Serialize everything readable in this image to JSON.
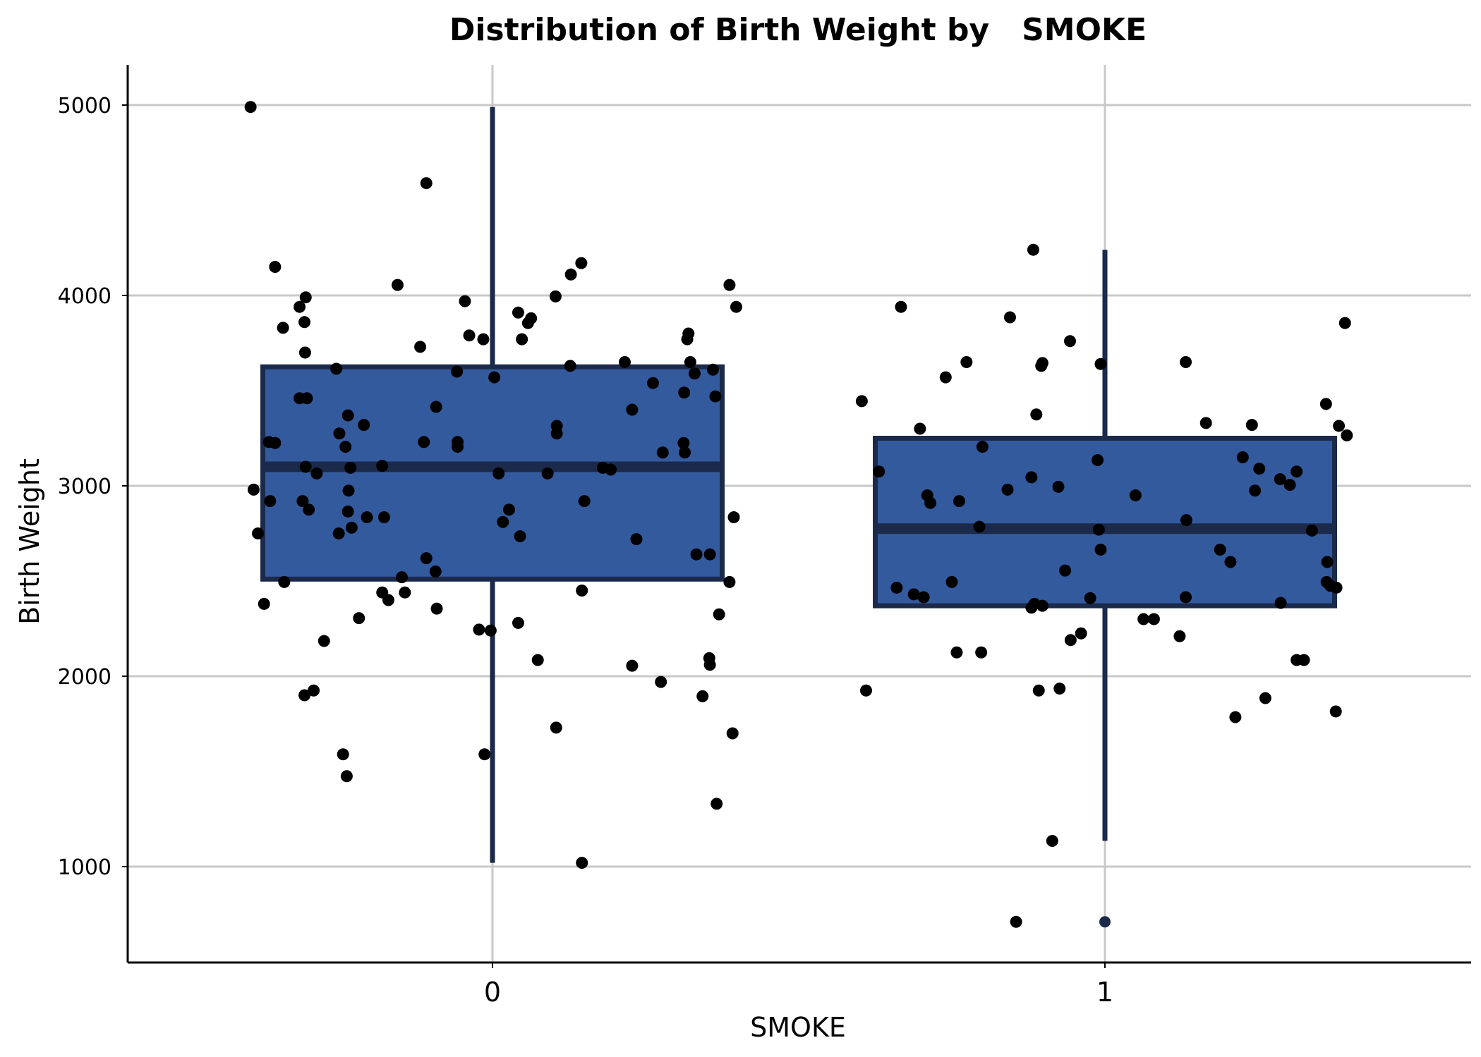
{
  "chart_data": {
    "type": "boxplot",
    "title": "Distribution of Birth Weight by   SMOKE",
    "xlabel": "SMOKE",
    "ylabel": "Birth Weight",
    "categories": [
      "0",
      "1"
    ],
    "ylim": [
      500,
      5200
    ],
    "yticks": [
      1000,
      2000,
      3000,
      4000,
      5000
    ],
    "grid": true,
    "colors": {
      "box_fill": "#345A9E",
      "box_stroke": "#1B2A4A",
      "point": "#000000",
      "outlier_point": "#1B2A4A",
      "grid": "#C8C8C8",
      "axis": "#000000"
    },
    "boxes": [
      {
        "category": "0",
        "q1": 2510,
        "median": 3100,
        "q3": 3625,
        "whisker_low": 1020,
        "whisker_high": 4990,
        "outliers": []
      },
      {
        "category": "1",
        "q1": 2370,
        "median": 2775,
        "q3": 3250,
        "whisker_low": 1135,
        "whisker_high": 4240,
        "outliers": [
          710
        ]
      }
    ],
    "points": [
      {
        "x": -0.395,
        "y": 4990
      },
      {
        "x": -0.108,
        "y": 4590
      },
      {
        "x": -0.355,
        "y": 4150
      },
      {
        "x": -0.305,
        "y": 3990
      },
      {
        "x": -0.315,
        "y": 3940
      },
      {
        "x": -0.307,
        "y": 3860
      },
      {
        "x": -0.342,
        "y": 3830
      },
      {
        "x": -0.155,
        "y": 4055
      },
      {
        "x": 0.145,
        "y": 4170
      },
      {
        "x": 0.128,
        "y": 4110
      },
      {
        "x": 0.103,
        "y": 3995
      },
      {
        "x": -0.045,
        "y": 3970
      },
      {
        "x": 0.042,
        "y": 3910
      },
      {
        "x": 0.063,
        "y": 3880
      },
      {
        "x": 0.058,
        "y": 3855
      },
      {
        "x": 0.048,
        "y": 3770
      },
      {
        "x": -0.038,
        "y": 3790
      },
      {
        "x": -0.015,
        "y": 3770
      },
      {
        "x": -0.118,
        "y": 3730
      },
      {
        "x": -0.306,
        "y": 3700
      },
      {
        "x": -0.255,
        "y": 3615
      },
      {
        "x": -0.058,
        "y": 3600
      },
      {
        "x": 0.003,
        "y": 3570
      },
      {
        "x": 0.127,
        "y": 3630
      },
      {
        "x": 0.216,
        "y": 3650
      },
      {
        "x": 0.262,
        "y": 3540
      },
      {
        "x": 0.323,
        "y": 3650
      },
      {
        "x": 0.32,
        "y": 3800
      },
      {
        "x": 0.318,
        "y": 3770
      },
      {
        "x": 0.33,
        "y": 3590
      },
      {
        "x": 0.36,
        "y": 3610
      },
      {
        "x": 0.387,
        "y": 4055
      },
      {
        "x": 0.398,
        "y": 3940
      },
      {
        "x": -0.315,
        "y": 3460
      },
      {
        "x": -0.303,
        "y": 3460
      },
      {
        "x": -0.092,
        "y": 3415
      },
      {
        "x": 0.228,
        "y": 3400
      },
      {
        "x": 0.313,
        "y": 3490
      },
      {
        "x": 0.364,
        "y": 3470
      },
      {
        "x": -0.236,
        "y": 3370
      },
      {
        "x": -0.21,
        "y": 3320
      },
      {
        "x": -0.25,
        "y": 3275
      },
      {
        "x": 0.105,
        "y": 3315
      },
      {
        "x": 0.105,
        "y": 3275
      },
      {
        "x": -0.365,
        "y": 3230
      },
      {
        "x": -0.355,
        "y": 3225
      },
      {
        "x": -0.112,
        "y": 3230
      },
      {
        "x": -0.057,
        "y": 3230
      },
      {
        "x": -0.057,
        "y": 3205
      },
      {
        "x": -0.24,
        "y": 3205
      },
      {
        "x": 0.278,
        "y": 3175
      },
      {
        "x": 0.312,
        "y": 3225
      },
      {
        "x": 0.314,
        "y": 3175
      },
      {
        "x": -0.305,
        "y": 3100
      },
      {
        "x": -0.287,
        "y": 3065
      },
      {
        "x": -0.232,
        "y": 3095
      },
      {
        "x": -0.18,
        "y": 3105
      },
      {
        "x": 0.01,
        "y": 3065
      },
      {
        "x": 0.09,
        "y": 3065
      },
      {
        "x": 0.18,
        "y": 3095
      },
      {
        "x": 0.193,
        "y": 3085
      },
      {
        "x": -0.39,
        "y": 2980
      },
      {
        "x": -0.363,
        "y": 2920
      },
      {
        "x": -0.31,
        "y": 2920
      },
      {
        "x": -0.3,
        "y": 2875
      },
      {
        "x": -0.235,
        "y": 2975
      },
      {
        "x": -0.236,
        "y": 2865
      },
      {
        "x": 0.15,
        "y": 2920
      },
      {
        "x": 0.027,
        "y": 2875
      },
      {
        "x": -0.205,
        "y": 2835
      },
      {
        "x": -0.177,
        "y": 2835
      },
      {
        "x": 0.394,
        "y": 2835
      },
      {
        "x": -0.383,
        "y": 2750
      },
      {
        "x": -0.251,
        "y": 2750
      },
      {
        "x": -0.23,
        "y": 2780
      },
      {
        "x": 0.017,
        "y": 2810
      },
      {
        "x": 0.045,
        "y": 2735
      },
      {
        "x": 0.235,
        "y": 2720
      },
      {
        "x": -0.108,
        "y": 2620
      },
      {
        "x": 0.333,
        "y": 2640
      },
      {
        "x": 0.355,
        "y": 2640
      },
      {
        "x": -0.34,
        "y": 2495
      },
      {
        "x": -0.093,
        "y": 2550
      },
      {
        "x": -0.148,
        "y": 2520
      },
      {
        "x": 0.387,
        "y": 2495
      },
      {
        "x": 0.146,
        "y": 2450
      },
      {
        "x": -0.373,
        "y": 2380
      },
      {
        "x": -0.18,
        "y": 2440
      },
      {
        "x": -0.143,
        "y": 2440
      },
      {
        "x": -0.17,
        "y": 2400
      },
      {
        "x": -0.091,
        "y": 2355
      },
      {
        "x": -0.218,
        "y": 2305
      },
      {
        "x": -0.275,
        "y": 2185
      },
      {
        "x": -0.022,
        "y": 2245
      },
      {
        "x": -0.003,
        "y": 2240
      },
      {
        "x": 0.042,
        "y": 2280
      },
      {
        "x": 0.37,
        "y": 2325
      },
      {
        "x": 0.074,
        "y": 2085
      },
      {
        "x": 0.228,
        "y": 2055
      },
      {
        "x": 0.354,
        "y": 2095
      },
      {
        "x": 0.355,
        "y": 2060
      },
      {
        "x": 0.275,
        "y": 1970
      },
      {
        "x": -0.307,
        "y": 1900
      },
      {
        "x": -0.292,
        "y": 1925
      },
      {
        "x": 0.343,
        "y": 1895
      },
      {
        "x": 0.392,
        "y": 1700
      },
      {
        "x": 0.104,
        "y": 1730
      },
      {
        "x": -0.244,
        "y": 1590
      },
      {
        "x": -0.013,
        "y": 1590
      },
      {
        "x": -0.238,
        "y": 1475
      },
      {
        "x": 0.366,
        "y": 1330
      },
      {
        "x": 0.146,
        "y": 1020
      },
      {
        "x": 0.883,
        "y": 4240
      },
      {
        "x": 0.667,
        "y": 3940
      },
      {
        "x": 0.845,
        "y": 3885
      },
      {
        "x": 1.392,
        "y": 3855
      },
      {
        "x": 0.943,
        "y": 3760
      },
      {
        "x": 0.774,
        "y": 3650
      },
      {
        "x": 0.898,
        "y": 3645
      },
      {
        "x": 0.896,
        "y": 3630
      },
      {
        "x": 0.993,
        "y": 3640
      },
      {
        "x": 1.132,
        "y": 3650
      },
      {
        "x": 0.74,
        "y": 3570
      },
      {
        "x": 0.603,
        "y": 3445
      },
      {
        "x": 1.361,
        "y": 3430
      },
      {
        "x": 0.888,
        "y": 3375
      },
      {
        "x": 1.165,
        "y": 3330
      },
      {
        "x": 1.24,
        "y": 3320
      },
      {
        "x": 1.382,
        "y": 3315
      },
      {
        "x": 0.698,
        "y": 3300
      },
      {
        "x": 1.395,
        "y": 3265
      },
      {
        "x": 0.8,
        "y": 3205
      },
      {
        "x": 1.225,
        "y": 3150
      },
      {
        "x": 0.988,
        "y": 3135
      },
      {
        "x": 1.252,
        "y": 3090
      },
      {
        "x": 1.313,
        "y": 3075
      },
      {
        "x": 0.631,
        "y": 3075
      },
      {
        "x": 1.286,
        "y": 3035
      },
      {
        "x": 0.88,
        "y": 3045
      },
      {
        "x": 1.245,
        "y": 2975
      },
      {
        "x": 1.302,
        "y": 3005
      },
      {
        "x": 0.924,
        "y": 2995
      },
      {
        "x": 0.841,
        "y": 2980
      },
      {
        "x": 0.71,
        "y": 2950
      },
      {
        "x": 0.715,
        "y": 2910
      },
      {
        "x": 0.762,
        "y": 2920
      },
      {
        "x": 1.05,
        "y": 2950
      },
      {
        "x": 1.133,
        "y": 2820
      },
      {
        "x": 0.795,
        "y": 2785
      },
      {
        "x": 0.99,
        "y": 2770
      },
      {
        "x": 1.338,
        "y": 2765
      },
      {
        "x": 0.993,
        "y": 2665
      },
      {
        "x": 1.188,
        "y": 2665
      },
      {
        "x": 1.205,
        "y": 2600
      },
      {
        "x": 1.363,
        "y": 2600
      },
      {
        "x": 0.935,
        "y": 2555
      },
      {
        "x": 0.75,
        "y": 2495
      },
      {
        "x": 1.362,
        "y": 2495
      },
      {
        "x": 1.368,
        "y": 2475
      },
      {
        "x": 1.378,
        "y": 2465
      },
      {
        "x": 0.66,
        "y": 2465
      },
      {
        "x": 0.688,
        "y": 2430
      },
      {
        "x": 0.704,
        "y": 2415
      },
      {
        "x": 1.132,
        "y": 2415
      },
      {
        "x": 0.976,
        "y": 2410
      },
      {
        "x": 0.885,
        "y": 2380
      },
      {
        "x": 0.88,
        "y": 2360
      },
      {
        "x": 0.898,
        "y": 2370
      },
      {
        "x": 1.287,
        "y": 2385
      },
      {
        "x": 1.063,
        "y": 2300
      },
      {
        "x": 1.08,
        "y": 2300
      },
      {
        "x": 0.961,
        "y": 2225
      },
      {
        "x": 0.944,
        "y": 2190
      },
      {
        "x": 1.122,
        "y": 2210
      },
      {
        "x": 0.758,
        "y": 2125
      },
      {
        "x": 0.798,
        "y": 2125
      },
      {
        "x": 1.313,
        "y": 2085
      },
      {
        "x": 1.325,
        "y": 2085
      },
      {
        "x": 0.61,
        "y": 1925
      },
      {
        "x": 0.892,
        "y": 1925
      },
      {
        "x": 0.926,
        "y": 1935
      },
      {
        "x": 1.262,
        "y": 1885
      },
      {
        "x": 1.377,
        "y": 1815
      },
      {
        "x": 1.213,
        "y": 1785
      },
      {
        "x": 0.914,
        "y": 1135
      },
      {
        "x": 0.855,
        "y": 710
      }
    ]
  }
}
